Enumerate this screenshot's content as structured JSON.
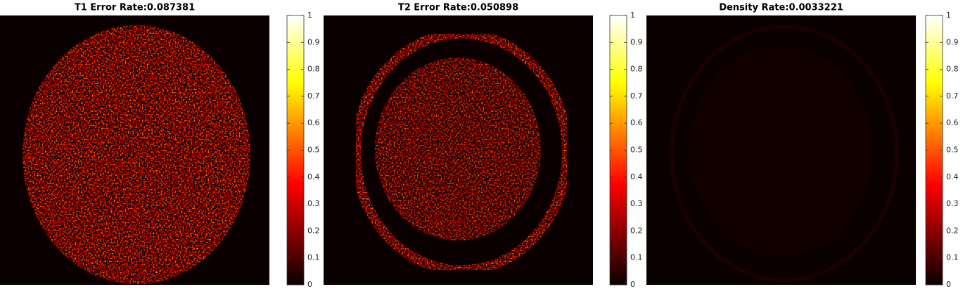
{
  "chart_data": [
    {
      "type": "heatmap",
      "title": "T1 Error Rate:0.087381",
      "clim": [
        0,
        1
      ],
      "cticks": [
        0,
        0.1,
        0.2,
        0.3,
        0.4,
        0.5,
        0.6,
        0.7,
        0.8,
        0.9,
        1
      ]
    },
    {
      "type": "heatmap",
      "title": "T2 Error Rate:0.050898",
      "clim": [
        0,
        1
      ],
      "cticks": [
        0,
        0.1,
        0.2,
        0.3,
        0.4,
        0.5,
        0.6,
        0.7,
        0.8,
        0.9,
        1
      ]
    },
    {
      "type": "heatmap",
      "title": "Density Rate:0.0033221",
      "clim": [
        0,
        1
      ],
      "cticks": [
        0,
        0.1,
        0.2,
        0.3,
        0.4,
        0.5,
        0.6,
        0.7,
        0.8,
        0.9,
        1
      ]
    }
  ]
}
